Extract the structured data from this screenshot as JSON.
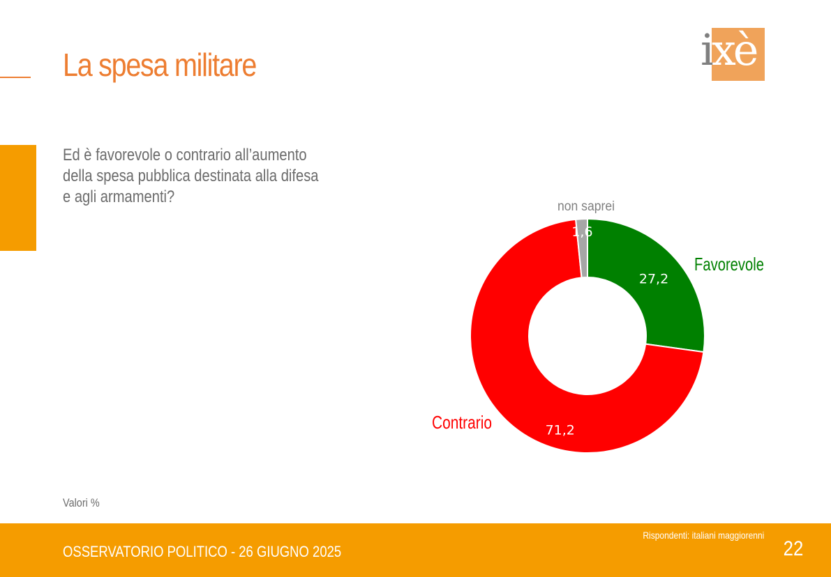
{
  "slide": {
    "title": "La spesa militare",
    "question": "Ed è favorevole o contrario all’aumento della spesa pubblica destinata alla difesa e agli armamenti?",
    "values_note": "Valori %",
    "page_number": "22"
  },
  "logo": {
    "i": "i",
    "xe": "xè"
  },
  "footer": {
    "left_text": "OSSERVATORIO POLITICO - 26 GIUGNO 2025",
    "respondents": "Rispondenti: italiani maggiorenni"
  },
  "colors": {
    "accent_orange": "#ed7d31",
    "bar_orange": "#f59c00",
    "logo_box": "#f0a35a"
  },
  "chart_data": {
    "type": "pie",
    "donut": true,
    "title": "",
    "slices": [
      {
        "name": "Favorevole",
        "value": 27.2,
        "label": "27,2",
        "color": "#008000"
      },
      {
        "name": "Contrario",
        "value": 71.2,
        "label": "71,2",
        "color": "#ff0000"
      },
      {
        "name": "non saprei",
        "value": 1.6,
        "label": "1,6",
        "color": "#a6a6a6"
      }
    ]
  }
}
